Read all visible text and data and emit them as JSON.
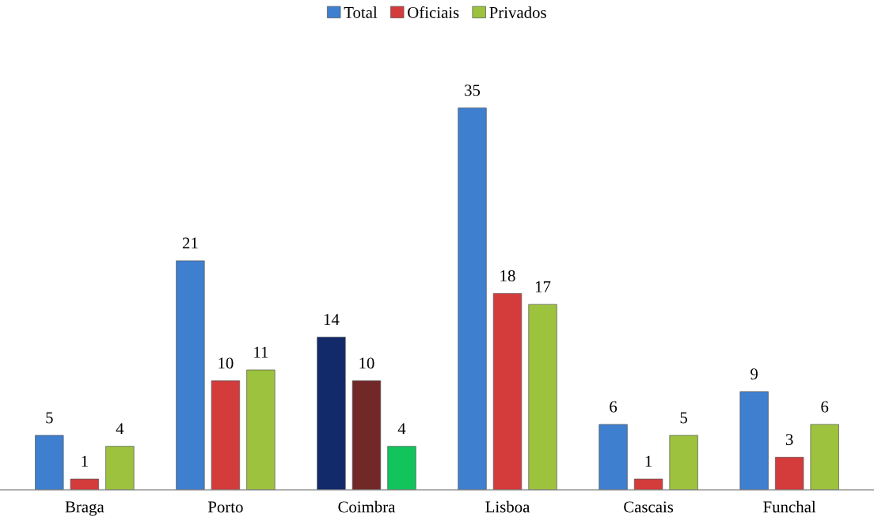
{
  "chart_data": {
    "type": "bar",
    "categories": [
      "Braga",
      "Porto",
      "Coimbra",
      "Lisboa",
      "Cascais",
      "Funchal"
    ],
    "series": [
      {
        "name": "Total",
        "color": "#3f7fcf",
        "colors": [
          "#3f7fcf",
          "#3f7fcf",
          "#12296a",
          "#3f7fcf",
          "#3f7fcf",
          "#3f7fcf"
        ],
        "values": [
          5,
          21,
          14,
          35,
          6,
          9
        ]
      },
      {
        "name": "Oficiais",
        "color": "#d43b3b",
        "colors": [
          "#d43b3b",
          "#d43b3b",
          "#732828",
          "#d43b3b",
          "#d43b3b",
          "#d43b3b"
        ],
        "values": [
          1,
          10,
          10,
          18,
          1,
          3
        ]
      },
      {
        "name": "Privados",
        "color": "#9dc23e",
        "colors": [
          "#9dc23e",
          "#9dc23e",
          "#12c45c",
          "#9dc23e",
          "#9dc23e",
          "#9dc23e"
        ],
        "values": [
          4,
          11,
          4,
          17,
          5,
          6
        ]
      }
    ],
    "data_labels": true,
    "legend": "top",
    "grid": false
  }
}
